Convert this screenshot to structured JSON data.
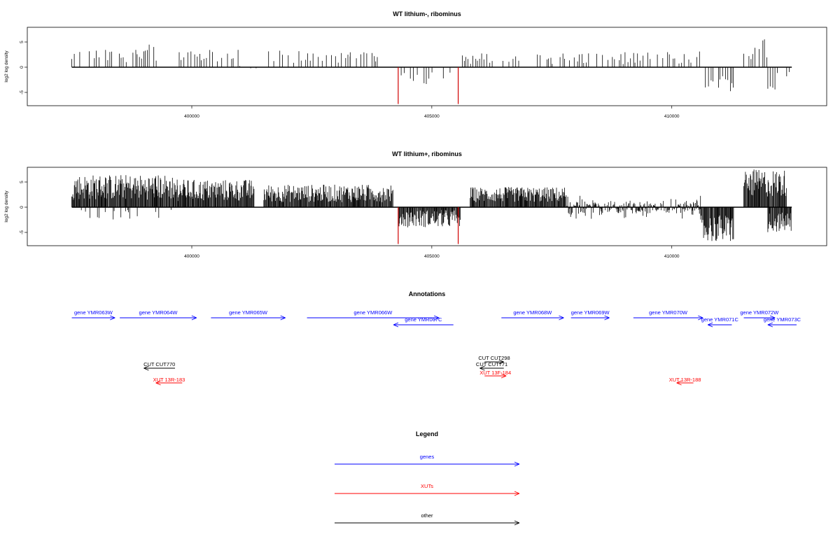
{
  "colors": {
    "genes": "#0000ff",
    "xuts": "#ff0000",
    "other": "#000000",
    "bars": "#000000",
    "highlight": "#d00000"
  },
  "chart_data": [
    {
      "type": "bar",
      "title": "WT lithium-, ribominus",
      "ylabel": "log2 log density",
      "xlim": [
        397200,
        412600
      ],
      "ylim": [
        -7.5,
        7.5
      ],
      "yticks": [
        5,
        0,
        -5
      ],
      "xticks": [
        400000,
        405000,
        410000
      ],
      "grid": false,
      "density": "sparse",
      "highlight_bars": [
        {
          "x": 404300,
          "value": -7.3
        },
        {
          "x": 405550,
          "value": -7.3
        }
      ],
      "series": [
        {
          "x_range": [
            397500,
            398600
          ],
          "value_range": [
            0.8,
            3.5
          ],
          "sign": "positive"
        },
        {
          "x_range": [
            398600,
            399300
          ],
          "value_range": [
            1.0,
            4.5
          ],
          "sign": "positive"
        },
        {
          "x_range": [
            399700,
            401000
          ],
          "value_range": [
            0.8,
            3.5
          ],
          "sign": "positive"
        },
        {
          "x_range": [
            401000,
            401400
          ],
          "value_range": [
            -1.0,
            1.0
          ],
          "sign": "mixed"
        },
        {
          "x_range": [
            401600,
            403300
          ],
          "value_range": [
            0.8,
            3.3
          ],
          "sign": "positive"
        },
        {
          "x_range": [
            403300,
            403900
          ],
          "value_range": [
            0.8,
            3.8
          ],
          "sign": "positive"
        },
        {
          "x_range": [
            404300,
            405400
          ],
          "value_range": [
            -3.5,
            -0.5
          ],
          "sign": "negative"
        },
        {
          "x_range": [
            405600,
            407000
          ],
          "value_range": [
            0.6,
            2.8
          ],
          "sign": "positive"
        },
        {
          "x_range": [
            407200,
            409600
          ],
          "value_range": [
            0.6,
            3.0
          ],
          "sign": "positive"
        },
        {
          "x_range": [
            409700,
            410600
          ],
          "value_range": [
            0.6,
            3.2
          ],
          "sign": "positive"
        },
        {
          "x_range": [
            410700,
            411300
          ],
          "value_range": [
            -4.8,
            -1.5
          ],
          "sign": "negative"
        },
        {
          "x_range": [
            411500,
            412200
          ],
          "value_range": [
            1.5,
            5.8
          ],
          "sign": "positive"
        },
        {
          "x_range": [
            412000,
            412500
          ],
          "value_range": [
            -4.5,
            -0.5
          ],
          "sign": "negative"
        }
      ]
    },
    {
      "type": "bar",
      "title": "WT lithium+, ribominus",
      "ylabel": "log2 log density",
      "xlim": [
        397200,
        412600
      ],
      "ylim": [
        -7.5,
        7.5
      ],
      "yticks": [
        5,
        0,
        -5
      ],
      "xticks": [
        400000,
        405000,
        410000
      ],
      "grid": false,
      "density": "dense",
      "highlight_bars": [
        {
          "x": 404300,
          "value": -7.3
        },
        {
          "x": 405550,
          "value": -7.3
        }
      ],
      "series": [
        {
          "x_range": [
            397500,
            399700
          ],
          "value_range": [
            1.5,
            6.5
          ],
          "sign": "positive"
        },
        {
          "x_range": [
            397500,
            399700
          ],
          "value_range": [
            -2.5,
            -0.5
          ],
          "sign": "sparse-negative"
        },
        {
          "x_range": [
            399700,
            401300
          ],
          "value_range": [
            1.2,
            5.5
          ],
          "sign": "positive"
        },
        {
          "x_range": [
            401500,
            404200
          ],
          "value_range": [
            1.0,
            4.5
          ],
          "sign": "positive"
        },
        {
          "x_range": [
            404300,
            405600
          ],
          "value_range": [
            -4.0,
            -0.5
          ],
          "sign": "negative"
        },
        {
          "x_range": [
            405800,
            407800
          ],
          "value_range": [
            1.0,
            4.0
          ],
          "sign": "positive"
        },
        {
          "x_range": [
            407800,
            410600
          ],
          "value_range": [
            -1.5,
            2.5
          ],
          "sign": "mixed"
        },
        {
          "x_range": [
            410600,
            411300
          ],
          "value_range": [
            -7.0,
            -1.5
          ],
          "sign": "negative"
        },
        {
          "x_range": [
            411500,
            412400
          ],
          "value_range": [
            2.0,
            7.5
          ],
          "sign": "positive"
        },
        {
          "x_range": [
            412000,
            412500
          ],
          "value_range": [
            -5.0,
            -1.0
          ],
          "sign": "negative"
        }
      ]
    }
  ],
  "annotations": {
    "title": "Annotations",
    "genes": [
      {
        "label": "gene YMR063W",
        "start": 397500,
        "end": 398400,
        "dir": "right",
        "row": 0
      },
      {
        "label": "gene YMR064W",
        "start": 398500,
        "end": 400100,
        "dir": "right",
        "row": 0
      },
      {
        "label": "gene YMR065W",
        "start": 400400,
        "end": 401950,
        "dir": "right",
        "row": 0
      },
      {
        "label": "gene YMR066W",
        "start": 402400,
        "end": 405150,
        "dir": "left-right",
        "row": 0
      },
      {
        "label": "gene YMR067C",
        "start": 404200,
        "end": 405450,
        "dir": "left",
        "row": 1
      },
      {
        "label": "gene YMR068W",
        "start": 406450,
        "end": 407750,
        "dir": "right",
        "row": 0
      },
      {
        "label": "gene YMR069W",
        "start": 407900,
        "end": 408700,
        "dir": "right",
        "row": 0
      },
      {
        "label": "gene YMR070W",
        "start": 409200,
        "end": 410650,
        "dir": "right",
        "row": 0
      },
      {
        "label": "gene YMR071C",
        "start": 410750,
        "end": 411250,
        "dir": "left",
        "row": 1
      },
      {
        "label": "gene YMR072W",
        "start": 411500,
        "end": 412150,
        "dir": "right",
        "row": 0
      },
      {
        "label": "gene YMR073C",
        "start": 412000,
        "end": 412600,
        "dir": "left",
        "row": 1
      }
    ],
    "others": [
      {
        "label": "CUT CUT770",
        "start": 399000,
        "end": 399650,
        "dir": "left"
      },
      {
        "label": "CUT CUT298",
        "start": 406100,
        "end": 406500,
        "dir": "right"
      },
      {
        "label": "CUT CUT771",
        "start": 406000,
        "end": 406500,
        "dir": "left"
      }
    ],
    "xuts": [
      {
        "label": "XUT 13R-183",
        "start": 399250,
        "end": 399800,
        "dir": "left"
      },
      {
        "label": "XUT 13F-184",
        "start": 406100,
        "end": 406550,
        "dir": "right"
      },
      {
        "label": "XUT 13R-188",
        "start": 410100,
        "end": 410450,
        "dir": "left"
      }
    ]
  },
  "legend": {
    "title": "Legend",
    "items": [
      {
        "label": "genes",
        "color": "#0000ff"
      },
      {
        "label": "XUTs",
        "color": "#ff0000"
      },
      {
        "label": "other",
        "color": "#000000"
      }
    ]
  }
}
